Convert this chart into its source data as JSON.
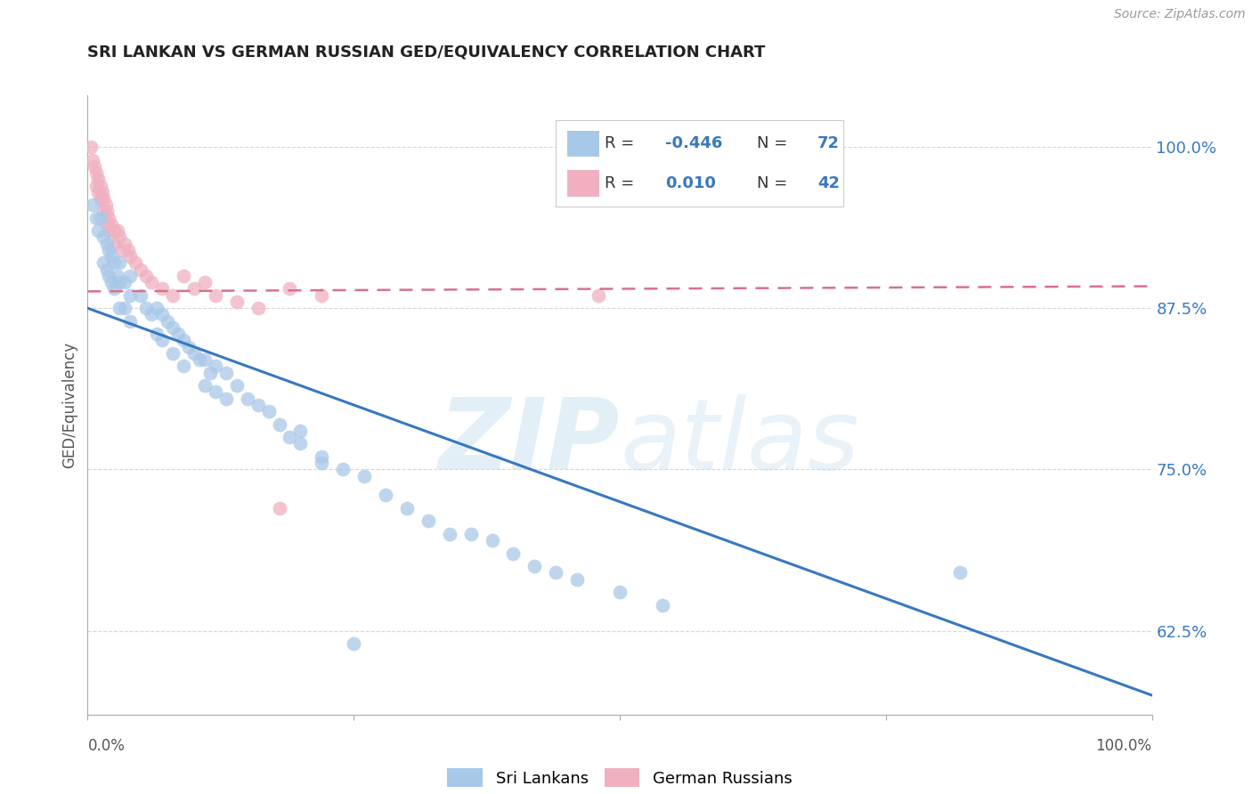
{
  "title": "SRI LANKAN VS GERMAN RUSSIAN GED/EQUIVALENCY CORRELATION CHART",
  "source": "Source: ZipAtlas.com",
  "ylabel": "GED/Equivalency",
  "watermark": "ZIPatlas",
  "xlim": [
    0.0,
    1.0
  ],
  "ylim": [
    0.56,
    1.04
  ],
  "yticks": [
    0.625,
    0.75,
    0.875,
    1.0
  ],
  "ytick_labels": [
    "62.5%",
    "75.0%",
    "87.5%",
    "100.0%"
  ],
  "sri_lankan_R": -0.446,
  "sri_lankan_N": 72,
  "german_russian_R": 0.01,
  "german_russian_N": 42,
  "sri_lankan_color": "#a8c8e8",
  "german_russian_color": "#f0b0c0",
  "sri_lankan_line_color": "#3878c0",
  "german_russian_line_color": "#d87090",
  "legend_text_color": "#3878c0",
  "title_color": "#222222",
  "grid_color": "#cccccc",
  "background_color": "#ffffff",
  "sl_line_x0": 0.0,
  "sl_line_y0": 0.875,
  "sl_line_x1": 1.0,
  "sl_line_y1": 0.575,
  "gr_line_x0": 0.0,
  "gr_line_y0": 0.888,
  "gr_line_x1": 1.0,
  "gr_line_y1": 0.892,
  "sri_lankans_x": [
    0.005,
    0.008,
    0.01,
    0.012,
    0.015,
    0.015,
    0.018,
    0.018,
    0.02,
    0.02,
    0.022,
    0.022,
    0.025,
    0.025,
    0.028,
    0.03,
    0.03,
    0.03,
    0.035,
    0.035,
    0.04,
    0.04,
    0.04,
    0.05,
    0.055,
    0.06,
    0.065,
    0.065,
    0.07,
    0.07,
    0.075,
    0.08,
    0.08,
    0.085,
    0.09,
    0.09,
    0.095,
    0.1,
    0.105,
    0.11,
    0.11,
    0.115,
    0.12,
    0.12,
    0.13,
    0.13,
    0.14,
    0.15,
    0.16,
    0.17,
    0.18,
    0.19,
    0.2,
    0.22,
    0.24,
    0.26,
    0.28,
    0.3,
    0.32,
    0.34,
    0.36,
    0.38,
    0.4,
    0.42,
    0.44,
    0.46,
    0.5,
    0.54,
    0.2,
    0.22,
    0.82,
    0.25
  ],
  "sri_lankans_y": [
    0.955,
    0.945,
    0.935,
    0.945,
    0.93,
    0.91,
    0.925,
    0.905,
    0.92,
    0.9,
    0.915,
    0.895,
    0.91,
    0.89,
    0.9,
    0.91,
    0.895,
    0.875,
    0.895,
    0.875,
    0.9,
    0.885,
    0.865,
    0.885,
    0.875,
    0.87,
    0.875,
    0.855,
    0.87,
    0.85,
    0.865,
    0.86,
    0.84,
    0.855,
    0.85,
    0.83,
    0.845,
    0.84,
    0.835,
    0.835,
    0.815,
    0.825,
    0.83,
    0.81,
    0.825,
    0.805,
    0.815,
    0.805,
    0.8,
    0.795,
    0.785,
    0.775,
    0.77,
    0.755,
    0.75,
    0.745,
    0.73,
    0.72,
    0.71,
    0.7,
    0.7,
    0.695,
    0.685,
    0.675,
    0.67,
    0.665,
    0.655,
    0.645,
    0.78,
    0.76,
    0.67,
    0.615
  ],
  "german_russians_x": [
    0.003,
    0.005,
    0.006,
    0.008,
    0.008,
    0.01,
    0.01,
    0.012,
    0.012,
    0.014,
    0.015,
    0.015,
    0.017,
    0.018,
    0.018,
    0.02,
    0.02,
    0.022,
    0.025,
    0.025,
    0.028,
    0.03,
    0.032,
    0.035,
    0.038,
    0.04,
    0.045,
    0.05,
    0.055,
    0.06,
    0.07,
    0.08,
    0.09,
    0.1,
    0.11,
    0.12,
    0.14,
    0.16,
    0.19,
    0.22,
    0.48,
    0.18
  ],
  "german_russians_y": [
    1.0,
    0.99,
    0.985,
    0.98,
    0.97,
    0.975,
    0.965,
    0.97,
    0.96,
    0.965,
    0.96,
    0.95,
    0.955,
    0.95,
    0.94,
    0.945,
    0.935,
    0.94,
    0.935,
    0.925,
    0.935,
    0.93,
    0.92,
    0.925,
    0.92,
    0.915,
    0.91,
    0.905,
    0.9,
    0.895,
    0.89,
    0.885,
    0.9,
    0.89,
    0.895,
    0.885,
    0.88,
    0.875,
    0.89,
    0.885,
    0.885,
    0.72
  ]
}
